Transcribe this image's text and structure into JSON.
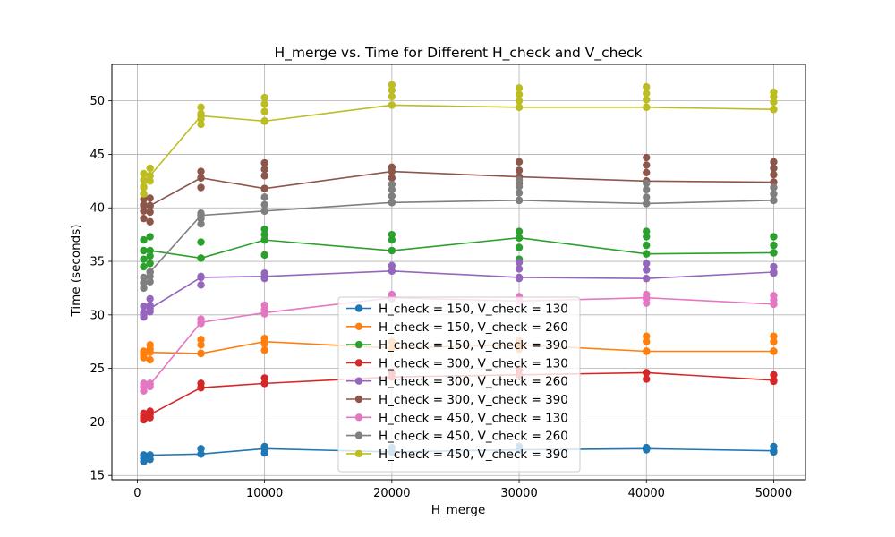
{
  "chart_data": {
    "type": "line",
    "title": "H_merge vs. Time for Different H_check and V_check",
    "xlabel": "H_merge",
    "ylabel": "Time (seconds)",
    "xlim": [
      -2000,
      52500
    ],
    "ylim": [
      14.6,
      53.4
    ],
    "xticks": [
      0,
      10000,
      20000,
      30000,
      40000,
      50000
    ],
    "yticks": [
      15,
      20,
      25,
      30,
      35,
      40,
      45,
      50
    ],
    "grid": true,
    "legend_position": "bottom-center",
    "x": [
      500,
      1000,
      5000,
      10000,
      20000,
      30000,
      40000,
      50000
    ],
    "series": [
      {
        "name": "H_check = 150, V_check = 130",
        "color": "#1f77b4",
        "values": [
          16.9,
          16.9,
          17.0,
          17.5,
          17.2,
          17.4,
          17.5,
          17.3
        ],
        "points": [
          [
            500,
            16.3
          ],
          [
            500,
            16.6
          ],
          [
            500,
            16.9
          ],
          [
            1000,
            16.5
          ],
          [
            1000,
            16.9
          ],
          [
            5000,
            17.0
          ],
          [
            5000,
            17.5
          ],
          [
            10000,
            17.1
          ],
          [
            10000,
            17.7
          ],
          [
            20000,
            17.2
          ],
          [
            20000,
            17.6
          ],
          [
            30000,
            17.4
          ],
          [
            30000,
            17.7
          ],
          [
            40000,
            17.4
          ],
          [
            40000,
            17.6
          ],
          [
            50000,
            17.2
          ],
          [
            50000,
            17.7
          ]
        ]
      },
      {
        "name": "H_check = 150, V_check = 260",
        "color": "#ff7f0e",
        "values": [
          26.5,
          26.5,
          26.4,
          27.5,
          26.9,
          27.2,
          26.6,
          26.6
        ],
        "points": [
          [
            500,
            26.0
          ],
          [
            500,
            26.3
          ],
          [
            500,
            26.6
          ],
          [
            1000,
            25.8
          ],
          [
            1000,
            26.8
          ],
          [
            1000,
            27.2
          ],
          [
            5000,
            26.4
          ],
          [
            5000,
            27.2
          ],
          [
            5000,
            27.7
          ],
          [
            10000,
            26.7
          ],
          [
            10000,
            27.3
          ],
          [
            10000,
            27.8
          ],
          [
            20000,
            26.9
          ],
          [
            20000,
            27.5
          ],
          [
            30000,
            26.8
          ],
          [
            30000,
            27.6
          ],
          [
            40000,
            26.6
          ],
          [
            40000,
            27.5
          ],
          [
            40000,
            28.0
          ],
          [
            50000,
            26.6
          ],
          [
            50000,
            27.5
          ],
          [
            50000,
            28.0
          ]
        ]
      },
      {
        "name": "H_check = 150, V_check = 390",
        "color": "#2ca02c",
        "values": [
          36.0,
          36.0,
          35.3,
          37.0,
          36.0,
          37.2,
          35.7,
          35.8
        ],
        "points": [
          [
            500,
            34.5
          ],
          [
            500,
            35.2
          ],
          [
            500,
            36.0
          ],
          [
            500,
            37.0
          ],
          [
            1000,
            34.8
          ],
          [
            1000,
            35.5
          ],
          [
            1000,
            36.0
          ],
          [
            1000,
            37.3
          ],
          [
            5000,
            35.3
          ],
          [
            5000,
            36.8
          ],
          [
            10000,
            35.6
          ],
          [
            10000,
            37.0
          ],
          [
            10000,
            37.5
          ],
          [
            10000,
            38.0
          ],
          [
            20000,
            36.0
          ],
          [
            20000,
            37.0
          ],
          [
            20000,
            37.5
          ],
          [
            30000,
            35.2
          ],
          [
            30000,
            36.3
          ],
          [
            30000,
            37.2
          ],
          [
            30000,
            37.8
          ],
          [
            40000,
            35.7
          ],
          [
            40000,
            36.5
          ],
          [
            40000,
            37.3
          ],
          [
            40000,
            37.8
          ],
          [
            50000,
            35.8
          ],
          [
            50000,
            36.5
          ],
          [
            50000,
            37.3
          ]
        ]
      },
      {
        "name": "H_check = 300, V_check = 130",
        "color": "#d62728",
        "values": [
          20.4,
          20.7,
          23.2,
          23.6,
          24.2,
          24.4,
          24.6,
          23.9
        ],
        "points": [
          [
            500,
            20.2
          ],
          [
            500,
            20.5
          ],
          [
            500,
            20.8
          ],
          [
            1000,
            20.4
          ],
          [
            1000,
            20.8
          ],
          [
            1000,
            21.0
          ],
          [
            5000,
            23.2
          ],
          [
            5000,
            23.6
          ],
          [
            10000,
            23.6
          ],
          [
            10000,
            24.1
          ],
          [
            20000,
            24.2
          ],
          [
            20000,
            24.6
          ],
          [
            30000,
            24.4
          ],
          [
            30000,
            24.9
          ],
          [
            40000,
            24.0
          ],
          [
            40000,
            24.6
          ],
          [
            50000,
            23.8
          ],
          [
            50000,
            24.4
          ]
        ]
      },
      {
        "name": "H_check = 300, V_check = 260",
        "color": "#9467bd",
        "values": [
          30.0,
          30.6,
          33.5,
          33.6,
          34.1,
          33.5,
          33.4,
          34.0
        ],
        "points": [
          [
            500,
            29.8
          ],
          [
            500,
            30.2
          ],
          [
            500,
            30.8
          ],
          [
            1000,
            30.3
          ],
          [
            1000,
            30.9
          ],
          [
            1000,
            31.5
          ],
          [
            5000,
            32.8
          ],
          [
            5000,
            33.6
          ],
          [
            10000,
            33.4
          ],
          [
            10000,
            33.9
          ],
          [
            20000,
            34.1
          ],
          [
            20000,
            34.6
          ],
          [
            30000,
            33.4
          ],
          [
            30000,
            34.3
          ],
          [
            30000,
            34.9
          ],
          [
            40000,
            33.4
          ],
          [
            40000,
            34.2
          ],
          [
            40000,
            34.8
          ],
          [
            50000,
            33.9
          ],
          [
            50000,
            34.5
          ]
        ]
      },
      {
        "name": "H_check = 300, V_check = 390",
        "color": "#8c564b",
        "values": [
          40.2,
          40.2,
          42.8,
          41.8,
          43.4,
          42.9,
          42.5,
          42.4
        ],
        "points": [
          [
            500,
            39.0
          ],
          [
            500,
            39.7
          ],
          [
            500,
            40.3
          ],
          [
            500,
            40.8
          ],
          [
            500,
            41.3
          ],
          [
            1000,
            38.7
          ],
          [
            1000,
            39.6
          ],
          [
            1000,
            40.2
          ],
          [
            1000,
            40.9
          ],
          [
            5000,
            41.9
          ],
          [
            5000,
            42.8
          ],
          [
            5000,
            43.4
          ],
          [
            10000,
            41.8
          ],
          [
            10000,
            43.0
          ],
          [
            10000,
            43.6
          ],
          [
            10000,
            44.2
          ],
          [
            20000,
            42.2
          ],
          [
            20000,
            42.8
          ],
          [
            20000,
            43.4
          ],
          [
            20000,
            43.8
          ],
          [
            30000,
            42.3
          ],
          [
            30000,
            42.9
          ],
          [
            30000,
            43.5
          ],
          [
            30000,
            44.3
          ],
          [
            40000,
            42.5
          ],
          [
            40000,
            43.3
          ],
          [
            40000,
            44.0
          ],
          [
            40000,
            44.7
          ],
          [
            50000,
            42.4
          ],
          [
            50000,
            43.1
          ],
          [
            50000,
            43.7
          ],
          [
            50000,
            44.3
          ]
        ]
      },
      {
        "name": "H_check = 450, V_check = 130",
        "color": "#e377c2",
        "values": [
          23.3,
          23.5,
          29.3,
          30.2,
          31.6,
          31.3,
          31.6,
          31.0
        ],
        "points": [
          [
            500,
            22.9
          ],
          [
            500,
            23.3
          ],
          [
            500,
            23.6
          ],
          [
            1000,
            23.3
          ],
          [
            1000,
            23.6
          ],
          [
            5000,
            29.2
          ],
          [
            5000,
            29.6
          ],
          [
            10000,
            30.1
          ],
          [
            10000,
            30.5
          ],
          [
            10000,
            30.9
          ],
          [
            20000,
            31.5
          ],
          [
            20000,
            31.9
          ],
          [
            30000,
            31.3
          ],
          [
            30000,
            31.7
          ],
          [
            40000,
            31.1
          ],
          [
            40000,
            31.5
          ],
          [
            40000,
            31.9
          ],
          [
            50000,
            31.0
          ],
          [
            50000,
            31.4
          ],
          [
            50000,
            31.8
          ]
        ]
      },
      {
        "name": "H_check = 450, V_check = 260",
        "color": "#7f7f7f",
        "values": [
          33.0,
          34.0,
          39.3,
          39.7,
          40.5,
          40.7,
          40.4,
          40.7
        ],
        "points": [
          [
            500,
            32.5
          ],
          [
            500,
            33.0
          ],
          [
            500,
            33.5
          ],
          [
            1000,
            33.1
          ],
          [
            1000,
            33.6
          ],
          [
            1000,
            34.0
          ],
          [
            5000,
            38.5
          ],
          [
            5000,
            39.0
          ],
          [
            5000,
            39.5
          ],
          [
            10000,
            39.7
          ],
          [
            10000,
            40.3
          ],
          [
            10000,
            41.0
          ],
          [
            20000,
            40.5
          ],
          [
            20000,
            41.1
          ],
          [
            20000,
            41.7
          ],
          [
            20000,
            42.2
          ],
          [
            30000,
            40.7
          ],
          [
            30000,
            41.4
          ],
          [
            30000,
            42.0
          ],
          [
            30000,
            42.6
          ],
          [
            40000,
            40.4
          ],
          [
            40000,
            41.0
          ],
          [
            40000,
            41.7
          ],
          [
            40000,
            42.3
          ],
          [
            50000,
            40.7
          ],
          [
            50000,
            41.3
          ],
          [
            50000,
            41.9
          ]
        ]
      },
      {
        "name": "H_check = 450, V_check = 390",
        "color": "#bcbd22",
        "values": [
          42.0,
          43.0,
          48.6,
          48.1,
          49.6,
          49.4,
          49.4,
          49.2
        ],
        "points": [
          [
            500,
            41.3
          ],
          [
            500,
            41.9
          ],
          [
            500,
            42.6
          ],
          [
            500,
            43.2
          ],
          [
            1000,
            42.5
          ],
          [
            1000,
            43.0
          ],
          [
            1000,
            43.7
          ],
          [
            5000,
            47.8
          ],
          [
            5000,
            48.3
          ],
          [
            5000,
            48.8
          ],
          [
            5000,
            49.4
          ],
          [
            10000,
            48.1
          ],
          [
            10000,
            49.0
          ],
          [
            10000,
            49.7
          ],
          [
            10000,
            50.3
          ],
          [
            20000,
            49.6
          ],
          [
            20000,
            50.4
          ],
          [
            20000,
            51.0
          ],
          [
            20000,
            51.5
          ],
          [
            30000,
            49.4
          ],
          [
            30000,
            50.0
          ],
          [
            30000,
            50.6
          ],
          [
            30000,
            51.2
          ],
          [
            40000,
            49.4
          ],
          [
            40000,
            50.1
          ],
          [
            40000,
            50.7
          ],
          [
            40000,
            51.3
          ],
          [
            50000,
            49.2
          ],
          [
            50000,
            49.9
          ],
          [
            50000,
            50.4
          ],
          [
            50000,
            50.8
          ]
        ]
      }
    ]
  }
}
